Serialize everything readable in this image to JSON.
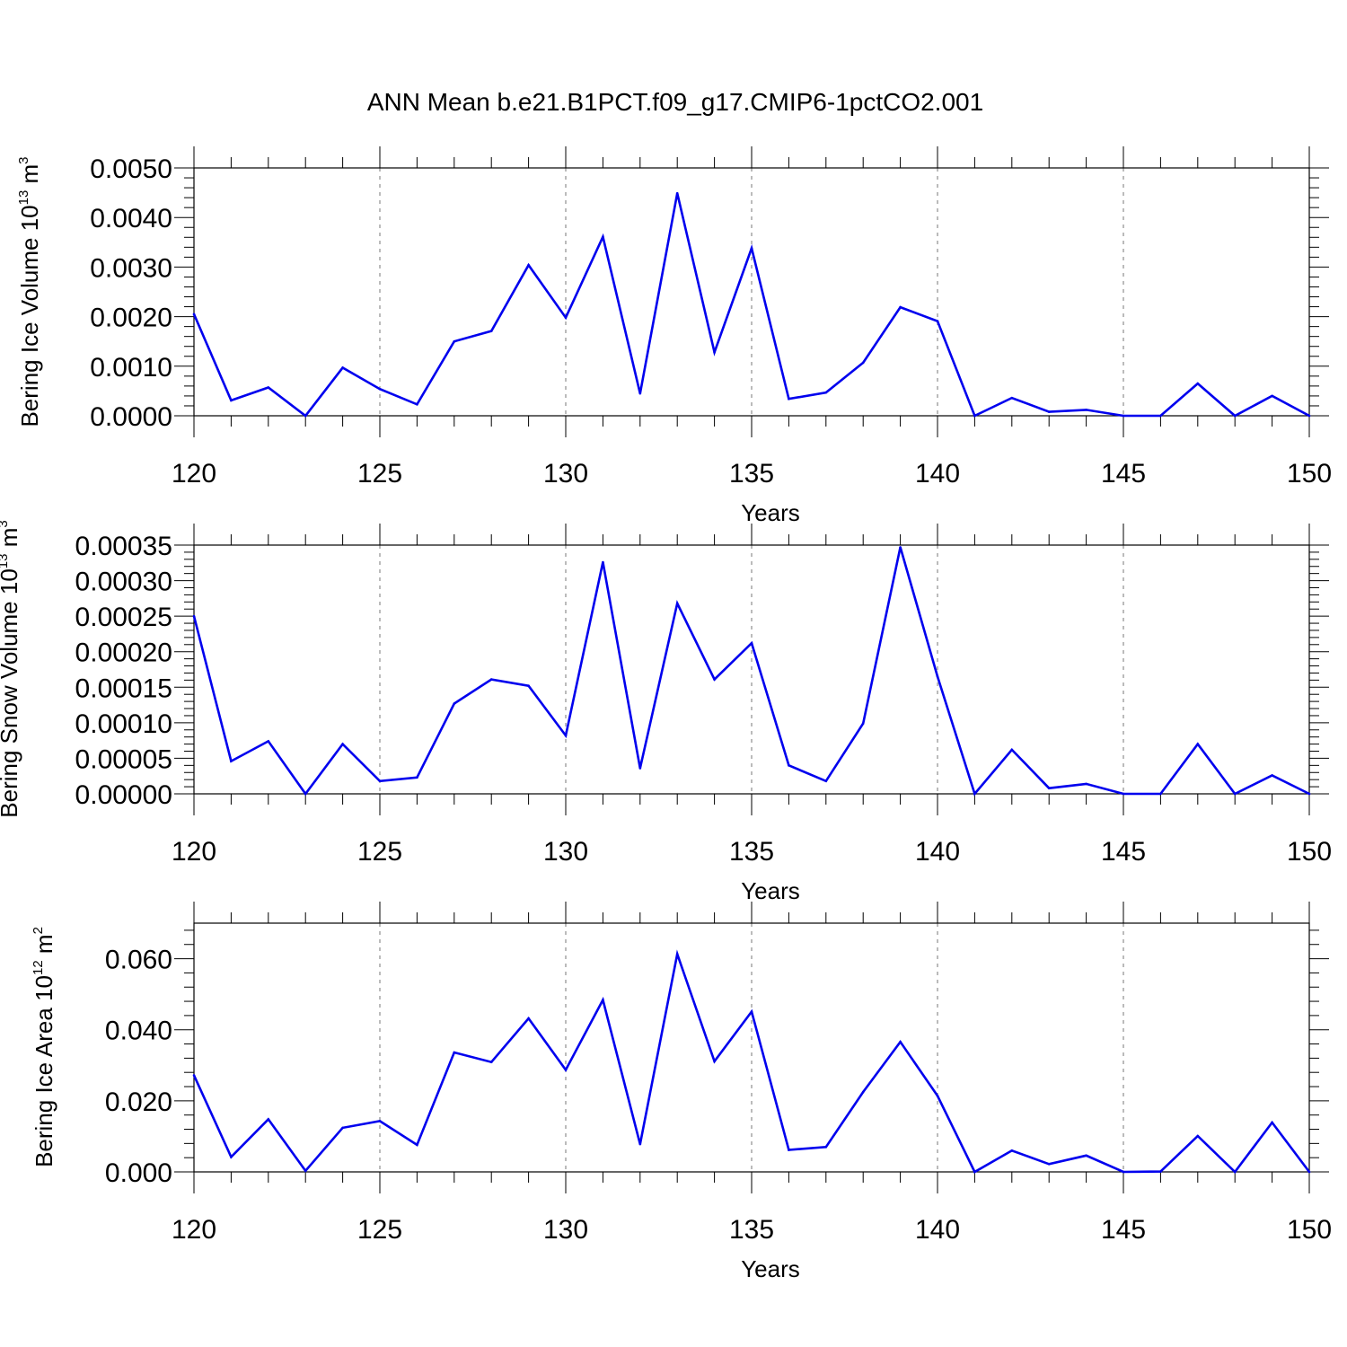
{
  "title": "ANN Mean b.e21.B1PCT.f09_g17.CMIP6-1pctCO2.001",
  "colors": {
    "series": "#0000ee",
    "axis": "#000000",
    "grid": "#777777"
  },
  "chart_data": [
    {
      "type": "line",
      "title": "",
      "xlabel": "Years",
      "ylabel": {
        "base": "Bering Ice Volume 10",
        "exponent": "13",
        "unit": " m",
        "unit_exponent": "3"
      },
      "xlim": [
        120,
        150
      ],
      "ylim": [
        0,
        0.005
      ],
      "x_ticks": [
        "120",
        "125",
        "130",
        "135",
        "140",
        "145",
        "150"
      ],
      "y_ticks": [
        {
          "value": 0.0,
          "label": "0.0000"
        },
        {
          "value": 0.001,
          "label": "0.0010"
        },
        {
          "value": 0.002,
          "label": "0.0020"
        },
        {
          "value": 0.003,
          "label": "0.0030"
        },
        {
          "value": 0.004,
          "label": "0.0040"
        },
        {
          "value": 0.005,
          "label": "0.0050"
        }
      ],
      "x": [
        120,
        121,
        122,
        123,
        124,
        125,
        126,
        127,
        128,
        129,
        130,
        131,
        132,
        133,
        134,
        135,
        136,
        137,
        138,
        139,
        140,
        141,
        142,
        143,
        144,
        145,
        146,
        147,
        148,
        149,
        150
      ],
      "values": [
        0.00205,
        0.00031,
        0.00057,
        0.0,
        0.00097,
        0.00054,
        0.00023,
        0.0015,
        0.00171,
        0.00304,
        0.00198,
        0.00361,
        0.00045,
        0.00449,
        0.00128,
        0.00338,
        0.00034,
        0.00047,
        0.00107,
        0.00219,
        0.00191,
        0.0,
        0.00036,
        8e-05,
        0.00012,
        0.0,
        0.0,
        0.00065,
        0.0,
        0.0004,
        0.0
      ],
      "grid": "dashed vertical at major x ticks"
    },
    {
      "type": "line",
      "title": "",
      "xlabel": "Years",
      "ylabel": {
        "base": "Bering Snow Volume 10",
        "exponent": "13",
        "unit": " m",
        "unit_exponent": "3"
      },
      "xlim": [
        120,
        150
      ],
      "ylim": [
        0,
        0.00035
      ],
      "x_ticks": [
        "120",
        "125",
        "130",
        "135",
        "140",
        "145",
        "150"
      ],
      "y_ticks": [
        {
          "value": 0.0,
          "label": "0.00000"
        },
        {
          "value": 5e-05,
          "label": "0.00005"
        },
        {
          "value": 0.0001,
          "label": "0.00010"
        },
        {
          "value": 0.00015,
          "label": "0.00015"
        },
        {
          "value": 0.0002,
          "label": "0.00020"
        },
        {
          "value": 0.00025,
          "label": "0.00025"
        },
        {
          "value": 0.0003,
          "label": "0.00030"
        },
        {
          "value": 0.00035,
          "label": "0.00035"
        }
      ],
      "x": [
        120,
        121,
        122,
        123,
        124,
        125,
        126,
        127,
        128,
        129,
        130,
        131,
        132,
        133,
        134,
        135,
        136,
        137,
        138,
        139,
        140,
        141,
        142,
        143,
        144,
        145,
        146,
        147,
        148,
        149,
        150
      ],
      "values": [
        0.00025,
        4.6e-05,
        7.4e-05,
        0.0,
        7e-05,
        1.8e-05,
        2.3e-05,
        0.000127,
        0.000161,
        0.000152,
        8.2e-05,
        0.000326,
        3.6e-05,
        0.000268,
        0.000161,
        0.000212,
        4e-05,
        1.8e-05,
        9.9e-05,
        0.000347,
        0.000165,
        0.0,
        6.2e-05,
        8e-06,
        1.4e-05,
        0.0,
        0.0,
        7e-05,
        0.0,
        2.6e-05,
        0.0
      ],
      "grid": "dashed vertical at major x ticks"
    },
    {
      "type": "line",
      "title": "",
      "xlabel": "Years",
      "ylabel": {
        "base": "Bering Ice Area 10",
        "exponent": "12",
        "unit": " m",
        "unit_exponent": "2"
      },
      "xlim": [
        120,
        150
      ],
      "ylim": [
        0,
        0.07
      ],
      "x_ticks": [
        "120",
        "125",
        "130",
        "135",
        "140",
        "145",
        "150"
      ],
      "y_ticks": [
        {
          "value": 0.0,
          "label": "0.000"
        },
        {
          "value": 0.02,
          "label": "0.020"
        },
        {
          "value": 0.04,
          "label": "0.040"
        },
        {
          "value": 0.06,
          "label": "0.060"
        }
      ],
      "x": [
        120,
        121,
        122,
        123,
        124,
        125,
        126,
        127,
        128,
        129,
        130,
        131,
        132,
        133,
        134,
        135,
        136,
        137,
        138,
        139,
        140,
        141,
        142,
        143,
        144,
        145,
        146,
        147,
        148,
        149,
        150
      ],
      "values": [
        0.0272,
        0.0042,
        0.0148,
        0.0003,
        0.0124,
        0.0143,
        0.0076,
        0.0336,
        0.0309,
        0.0432,
        0.0287,
        0.0484,
        0.0078,
        0.0613,
        0.0311,
        0.0451,
        0.0062,
        0.007,
        0.0225,
        0.0366,
        0.0214,
        0.0,
        0.006,
        0.0022,
        0.0046,
        0.0,
        0.0001,
        0.0101,
        0.0,
        0.0139,
        0.0
      ],
      "grid": "dashed vertical at major x ticks"
    }
  ]
}
